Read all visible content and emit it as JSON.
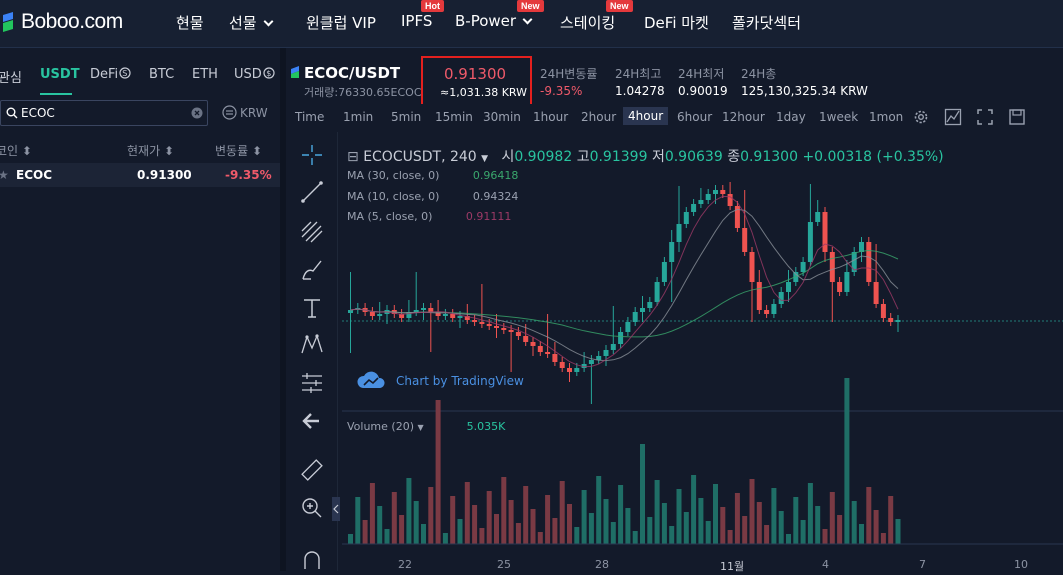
{
  "brand": {
    "name": "Boboo.com"
  },
  "nav": {
    "items": [
      {
        "label": "현물"
      },
      {
        "label": "선물"
      },
      {
        "label": "윈클럽 VIP"
      },
      {
        "label": "IPFS",
        "badge": "Hot"
      },
      {
        "label": "B-Power",
        "badge": "New"
      },
      {
        "label": "스테이킹",
        "badge": "New"
      },
      {
        "label": "DeFi 마켓"
      },
      {
        "label": "폴카닷섹터"
      }
    ]
  },
  "market": {
    "tabs": [
      "관심",
      "USDT",
      "DeFi",
      "BTC",
      "ETH",
      "USD"
    ],
    "active_tab": "USDT",
    "search": {
      "value": "ECOC"
    },
    "currency_toggle": "KRW",
    "columns": [
      "코인",
      "현재가",
      "변동률"
    ],
    "rows": [
      {
        "symbol": "ECOC",
        "price": "0.91300",
        "change": "-9.35%"
      }
    ]
  },
  "ticker": {
    "pair": "ECOC/USDT",
    "volume_label": "거래량:76330.65ECOC",
    "price": "0.91300",
    "price_krw": "≈1,031.38 KRW",
    "stats": [
      {
        "label": "24H변동률",
        "value": "-9.35%"
      },
      {
        "label": "24H최고",
        "value": "1.04278"
      },
      {
        "label": "24H최저",
        "value": "0.90019"
      },
      {
        "label": "24H총",
        "value": "125,130,325.34 KRW"
      }
    ]
  },
  "toolbar": {
    "timeframes": [
      "Time",
      "1min",
      "5min",
      "15min",
      "30min",
      "1hour",
      "2hour",
      "4hour",
      "6hour",
      "12hour",
      "1day",
      "1week",
      "1mon"
    ],
    "active": "4hour"
  },
  "chart": {
    "symbol": "ECOCUSDT, 240",
    "ohlc": {
      "o_label": "시",
      "o": "0.90982",
      "h_label": "고",
      "h": "0.91399",
      "l_label": "저",
      "l": "0.90639",
      "c_label": "종",
      "c": "0.91300",
      "change": "+0.00318 (+0.35%)"
    },
    "indicators": [
      {
        "label": "MA (30, close, 0)",
        "value": "0.96418",
        "color": "#3aa76d"
      },
      {
        "label": "MA (10, close, 0)",
        "value": "0.94324",
        "color": "#9aa1b0"
      },
      {
        "label": "MA (5, close, 0)",
        "value": "0.91111",
        "color": "#9c3a66"
      }
    ],
    "watermark": "Chart by TradingView",
    "volume_label": "Volume (20)",
    "volume_value": "5.035K",
    "x_ticks": [
      "22",
      "25",
      "28",
      "11월",
      "4",
      "7",
      "10"
    ],
    "colors": {
      "up": "#26a69a",
      "down": "#ef5350",
      "accent": "#29c4a0"
    }
  }
}
